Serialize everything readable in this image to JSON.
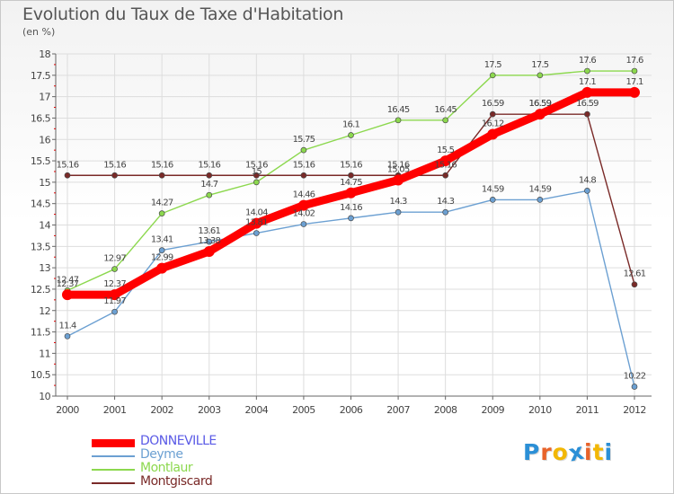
{
  "chart_data": {
    "type": "line",
    "title": "Evolution du Taux de Taxe d'Habitation",
    "unit_label": "(en %)",
    "x": [
      "2000",
      "2001",
      "2002",
      "2003",
      "2004",
      "2005",
      "2006",
      "2007",
      "2008",
      "2009",
      "2010",
      "2011",
      "2012"
    ],
    "ylim": [
      10,
      18
    ],
    "yticks": [
      "10",
      "10.5",
      "11",
      "11.5",
      "12",
      "12.5",
      "13",
      "13.5",
      "14",
      "14.5",
      "15",
      "15.5",
      "16",
      "16.5",
      "17",
      "17.5",
      "18"
    ],
    "grid": true,
    "legend_position": "bottom-left",
    "series": [
      {
        "name": "DONNEVILLE",
        "color": "#ff0000",
        "emphasis": true,
        "values": [
          12.37,
          12.37,
          12.99,
          13.38,
          14.04,
          14.46,
          14.75,
          15.05,
          15.5,
          16.12,
          16.59,
          17.1,
          17.1
        ],
        "labels": [
          "12.37",
          "12.37",
          "12.99",
          "13.38",
          "14.04",
          "14.46",
          "14.75",
          "15.05",
          "15.5",
          "16.12",
          "16.59",
          "17.1",
          "17.1"
        ]
      },
      {
        "name": "Deyme",
        "color": "#6ca0d2",
        "values": [
          11.4,
          11.97,
          13.41,
          13.61,
          13.81,
          14.02,
          14.16,
          14.3,
          14.3,
          14.59,
          14.59,
          14.8,
          10.22
        ],
        "labels": [
          "11.4",
          "11.97",
          "13.41",
          "13.61",
          "13.81",
          "14.02",
          "14.16",
          "14.3",
          "14.3",
          "14.59",
          "14.59",
          "14.8",
          "10.22"
        ]
      },
      {
        "name": "Montlaur",
        "color": "#8cd84e",
        "values": [
          12.47,
          12.97,
          14.27,
          14.7,
          15.0,
          15.75,
          16.1,
          16.45,
          16.45,
          17.5,
          17.5,
          17.6,
          17.6
        ],
        "labels": [
          "12.47",
          "12.97",
          "14.27",
          "14.7",
          "15",
          "15.75",
          "16.1",
          "16.45",
          "16.45",
          "17.5",
          "17.5",
          "17.6",
          "17.6"
        ]
      },
      {
        "name": "Montgiscard",
        "color": "#7a2a28",
        "values": [
          15.16,
          15.16,
          15.16,
          15.16,
          15.16,
          15.16,
          15.16,
          15.16,
          15.16,
          16.59,
          16.59,
          16.59,
          12.61
        ],
        "labels": [
          "15.16",
          "15.16",
          "15.16",
          "15.16",
          "15.16",
          "15.16",
          "15.16",
          "15.16",
          "15.16",
          "16.59",
          "16.59",
          "16.59",
          "12.61"
        ]
      }
    ]
  },
  "logo": {
    "text": "Proxiti",
    "letter_colors": [
      "#2b8fd6",
      "#e8632a",
      "#f2b705",
      "#2b8fd6",
      "#e8632a",
      "#f2b705",
      "#2b8fd6"
    ]
  },
  "colors": {
    "grid": "#dddddd",
    "axis": "#666666",
    "axis_ticks_red": "#dd0000",
    "label_text": "#444444",
    "donneville_legend_text": "#5a5ae6"
  }
}
